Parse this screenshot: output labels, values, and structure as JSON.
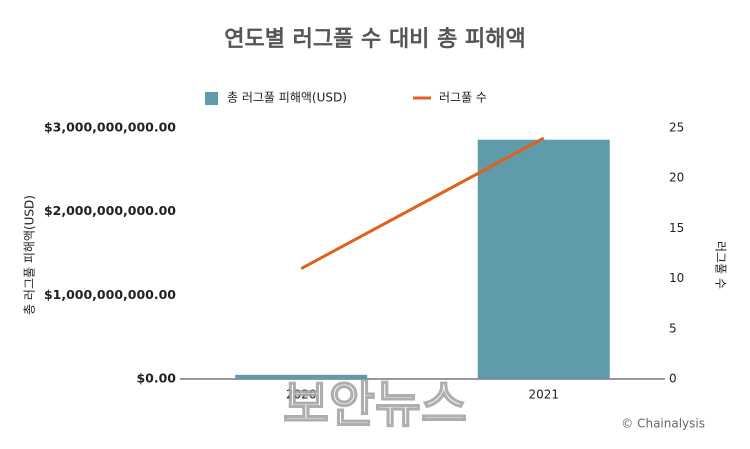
{
  "chart_data": {
    "type": "combo",
    "title": "연도별 러그풀 수 대비 총 피해액",
    "categories": [
      "2020",
      "2021"
    ],
    "series": [
      {
        "name": "총 러그풀 피해액(USD)",
        "type": "bar",
        "color": "#5f9ba8",
        "values": [
          50000000,
          2860000000
        ]
      },
      {
        "name": "러그풀 수",
        "type": "line",
        "color": "#e0601f",
        "axis": "y2",
        "values": [
          11,
          24
        ]
      }
    ],
    "ylabel": "총 러그풀 피해액(USD)",
    "y2label": "러그풀 수",
    "ylim": [
      0,
      3000000000
    ],
    "yticks": [
      {
        "value": 0,
        "label": "$0.00"
      },
      {
        "value": 1000000000,
        "label": "$1,000,000,000.00"
      },
      {
        "value": 2000000000,
        "label": "$2,000,000,000.00"
      },
      {
        "value": 3000000000,
        "label": "$3,000,000,000.00"
      }
    ],
    "y2lim": [
      0,
      25
    ],
    "y2ticks": [
      0,
      5,
      10,
      15,
      20,
      25
    ],
    "grid": false,
    "legend": "top",
    "source": "© Chainalysis",
    "watermark": "보안뉴스"
  }
}
